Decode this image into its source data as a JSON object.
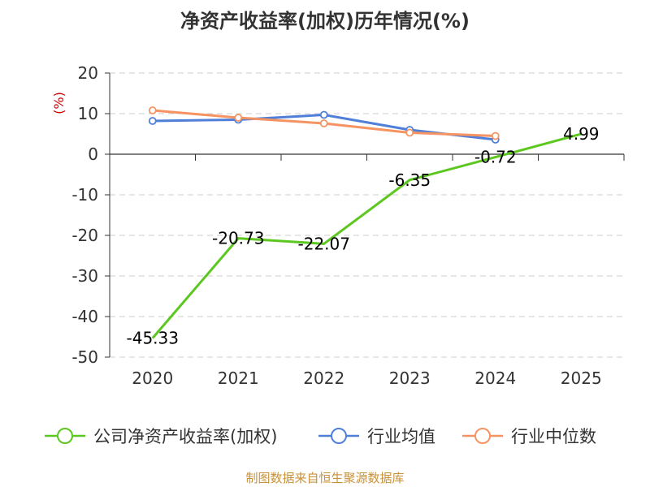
{
  "title": "净资产收益率(加权)历年情况(%)",
  "source": "制图数据来自恒生聚源数据库",
  "colors": {
    "company": "#5cc71f",
    "industry_avg": "#4f7fd9",
    "industry_median": "#f59462",
    "grid": "#cccccc",
    "axis": "#333333"
  },
  "chart_data": {
    "type": "line",
    "title": "净资产收益率(加权)历年情况(%)",
    "ylabel": "(%)",
    "xlabel": "",
    "categories": [
      "2020",
      "2021",
      "2022",
      "2023",
      "2024",
      "2025"
    ],
    "ylim": [
      -50,
      20
    ],
    "yticks": [
      20,
      10,
      0,
      -10,
      -20,
      -30,
      -40,
      -50
    ],
    "grid": true,
    "legend": "bottom",
    "series": [
      {
        "name": "公司净资产收益率(加权)",
        "color_key": "company",
        "values": [
          -45.33,
          -20.73,
          -22.07,
          -6.35,
          -0.72,
          4.99
        ],
        "labels": [
          "-45.33",
          "-20.73",
          "-22.07",
          "-6.35",
          "-0.72",
          "4.99"
        ]
      },
      {
        "name": "行业均值",
        "color_key": "industry_avg",
        "values": [
          8.2,
          8.5,
          9.7,
          6.0,
          3.6,
          null
        ]
      },
      {
        "name": "行业中位数",
        "color_key": "industry_median",
        "values": [
          10.8,
          9.0,
          7.6,
          5.3,
          4.5,
          null
        ]
      }
    ]
  }
}
